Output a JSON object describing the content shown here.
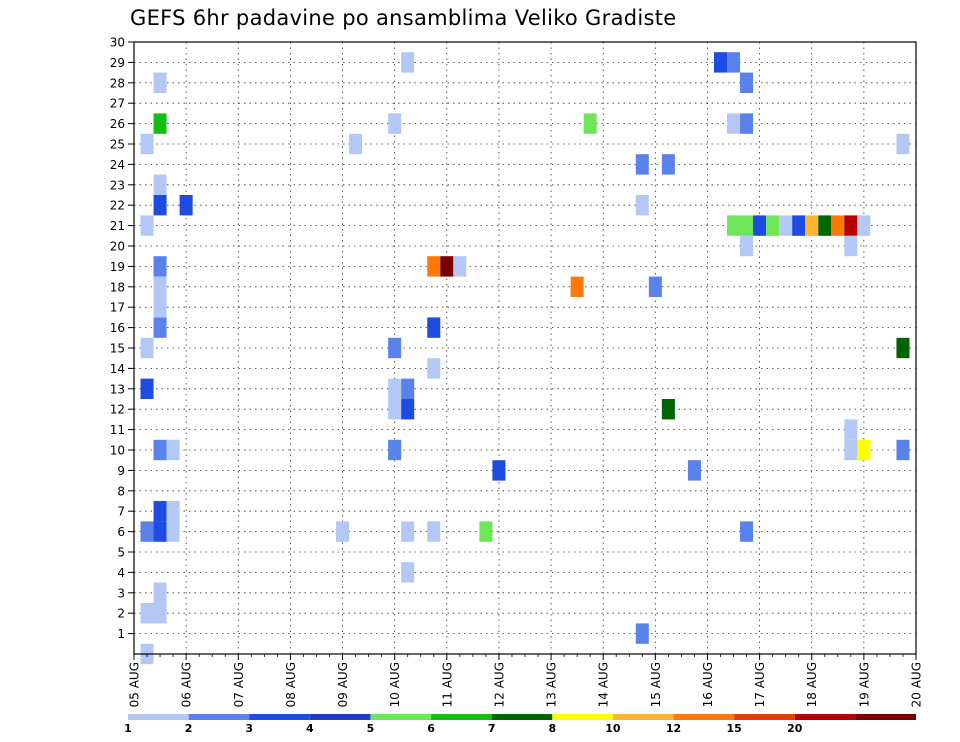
{
  "chart_data": {
    "type": "heatmap",
    "title": "GEFS 6hr padavine po ansamblima Veliko Gradiste",
    "xlabel": "",
    "ylabel": "",
    "x_ticks": [
      "05 AUG",
      "06 AUG",
      "07 AUG",
      "08 AUG",
      "09 AUG",
      "10 AUG",
      "11 AUG",
      "12 AUG",
      "13 AUG",
      "14 AUG",
      "15 AUG",
      "16 AUG",
      "17 AUG",
      "18 AUG",
      "19 AUG",
      "20 AUG"
    ],
    "y_ticks": [
      1,
      2,
      3,
      4,
      5,
      6,
      7,
      8,
      9,
      10,
      11,
      12,
      13,
      14,
      15,
      16,
      17,
      18,
      19,
      20,
      21,
      22,
      23,
      24,
      25,
      26,
      27,
      28,
      29,
      30
    ],
    "x_step": "6hr",
    "y_range": [
      0,
      30
    ],
    "grid": true,
    "colorbar": {
      "placement": "bottom",
      "labels": [
        "1",
        "2",
        "3",
        "4",
        "5",
        "6",
        "7",
        "8",
        "10",
        "12",
        "15",
        "20",
        ""
      ],
      "colors": [
        "#b4c8f5",
        "#5a82eb",
        "#1e4be1",
        "#1e3cc8",
        "#6ee65a",
        "#14be14",
        "#006400",
        "#ffff00",
        "#ffb432",
        "#ff780a",
        "#e63c0a",
        "#b40000",
        "#780000"
      ]
    },
    "cells": [
      {
        "t": 1,
        "m": 0,
        "c": 0
      },
      {
        "t": 1,
        "m": 2,
        "c": 0
      },
      {
        "t": 1,
        "m": 6,
        "c": 1
      },
      {
        "t": 1,
        "m": 13,
        "c": 2
      },
      {
        "t": 1,
        "m": 15,
        "c": 0
      },
      {
        "t": 1,
        "m": 21,
        "c": 0
      },
      {
        "t": 1,
        "m": 25,
        "c": 0
      },
      {
        "t": 2,
        "m": 2,
        "c": 0
      },
      {
        "t": 2,
        "m": 3,
        "c": 0
      },
      {
        "t": 2,
        "m": 6,
        "c": 2
      },
      {
        "t": 2,
        "m": 7,
        "c": 2
      },
      {
        "t": 2,
        "m": 10,
        "c": 1
      },
      {
        "t": 2,
        "m": 16,
        "c": 1
      },
      {
        "t": 2,
        "m": 18,
        "c": 0
      },
      {
        "t": 2,
        "m": 17,
        "c": 0
      },
      {
        "t": 2,
        "m": 19,
        "c": 1
      },
      {
        "t": 2,
        "m": 22,
        "c": 2
      },
      {
        "t": 2,
        "m": 23,
        "c": 0
      },
      {
        "t": 2,
        "m": 26,
        "c": 5
      },
      {
        "t": 2,
        "m": 28,
        "c": 0
      },
      {
        "t": 3,
        "m": 6,
        "c": 0
      },
      {
        "t": 3,
        "m": 10,
        "c": 0
      },
      {
        "t": 3,
        "m": 7,
        "c": 0
      },
      {
        "t": 4,
        "m": 22,
        "c": 2
      },
      {
        "t": 16,
        "m": 6,
        "c": 0
      },
      {
        "t": 17,
        "m": 25,
        "c": 0
      },
      {
        "t": 20,
        "m": 10,
        "c": 1
      },
      {
        "t": 20,
        "m": 12,
        "c": 0
      },
      {
        "t": 20,
        "m": 13,
        "c": 0
      },
      {
        "t": 20,
        "m": 15,
        "c": 1
      },
      {
        "t": 20,
        "m": 26,
        "c": 0
      },
      {
        "t": 21,
        "m": 4,
        "c": 0
      },
      {
        "t": 21,
        "m": 6,
        "c": 0
      },
      {
        "t": 21,
        "m": 12,
        "c": 2
      },
      {
        "t": 21,
        "m": 13,
        "c": 1
      },
      {
        "t": 21,
        "m": 29,
        "c": 0
      },
      {
        "t": 23,
        "m": 6,
        "c": 0
      },
      {
        "t": 23,
        "m": 14,
        "c": 0
      },
      {
        "t": 23,
        "m": 16,
        "c": 2
      },
      {
        "t": 23,
        "m": 19,
        "c": 9
      },
      {
        "t": 24,
        "m": 19,
        "c": 12
      },
      {
        "t": 25,
        "m": 19,
        "c": 0
      },
      {
        "t": 27,
        "m": 6,
        "c": 4
      },
      {
        "t": 28,
        "m": 9,
        "c": 2
      },
      {
        "t": 34,
        "m": 18,
        "c": 9
      },
      {
        "t": 35,
        "m": 26,
        "c": 4
      },
      {
        "t": 39,
        "m": 1,
        "c": 1
      },
      {
        "t": 39,
        "m": 22,
        "c": 0
      },
      {
        "t": 39,
        "m": 24,
        "c": 1
      },
      {
        "t": 40,
        "m": 18,
        "c": 1
      },
      {
        "t": 41,
        "m": 12,
        "c": 6
      },
      {
        "t": 41,
        "m": 24,
        "c": 1
      },
      {
        "t": 43,
        "m": 9,
        "c": 1
      },
      {
        "t": 45,
        "m": 29,
        "c": 2
      },
      {
        "t": 46,
        "m": 26,
        "c": 0
      },
      {
        "t": 46,
        "m": 21,
        "c": 4
      },
      {
        "t": 46,
        "m": 29,
        "c": 1
      },
      {
        "t": 47,
        "m": 6,
        "c": 1
      },
      {
        "t": 47,
        "m": 20,
        "c": 0
      },
      {
        "t": 47,
        "m": 21,
        "c": 4
      },
      {
        "t": 47,
        "m": 26,
        "c": 1
      },
      {
        "t": 47,
        "m": 28,
        "c": 1
      },
      {
        "t": 48,
        "m": 21,
        "c": 2
      },
      {
        "t": 49,
        "m": 21,
        "c": 4
      },
      {
        "t": 50,
        "m": 21,
        "c": 0
      },
      {
        "t": 51,
        "m": 21,
        "c": 2
      },
      {
        "t": 52,
        "m": 21,
        "c": 8
      },
      {
        "t": 53,
        "m": 21,
        "c": 6
      },
      {
        "t": 54,
        "m": 21,
        "c": 9
      },
      {
        "t": 55,
        "m": 21,
        "c": 11
      },
      {
        "t": 55,
        "m": 20,
        "c": 0
      },
      {
        "t": 55,
        "m": 10,
        "c": 0
      },
      {
        "t": 55,
        "m": 11,
        "c": 0
      },
      {
        "t": 56,
        "m": 21,
        "c": 0
      },
      {
        "t": 56,
        "m": 10,
        "c": 7
      },
      {
        "t": 59,
        "m": 15,
        "c": 6
      },
      {
        "t": 59,
        "m": 10,
        "c": 1
      },
      {
        "t": 59,
        "m": 25,
        "c": 0
      }
    ]
  }
}
